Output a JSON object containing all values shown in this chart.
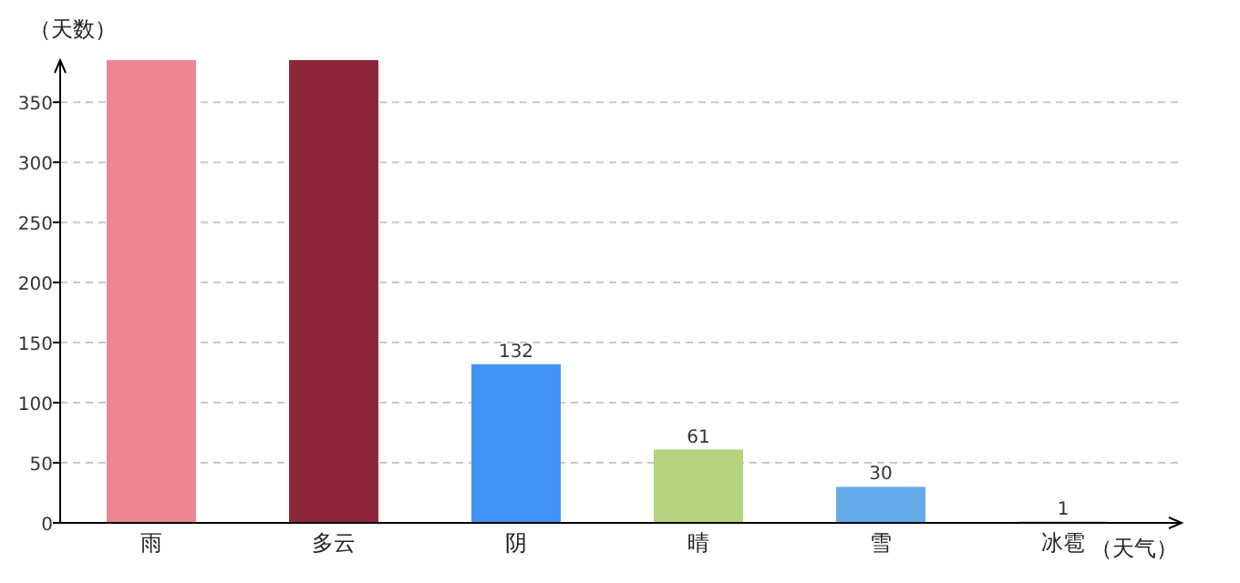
{
  "chart_data": {
    "type": "bar",
    "ylabel": "（天数）",
    "xlabel": "（天气）",
    "categories": [
      "雨",
      "多云",
      "阴",
      "晴",
      "雪",
      "冰雹"
    ],
    "values": [
      385,
      385,
      132,
      61,
      30,
      1
    ],
    "value_labels": [
      null,
      null,
      "132",
      "61",
      "30",
      "1"
    ],
    "colors": [
      "#ec8690",
      "#8d2538",
      "#4192f5",
      "#b4d47e",
      "#66abe9",
      "#d9434a"
    ],
    "ylim": [
      0,
      385
    ],
    "yticks": [
      0,
      50,
      100,
      150,
      200,
      250,
      300,
      350
    ],
    "grid": "y"
  }
}
